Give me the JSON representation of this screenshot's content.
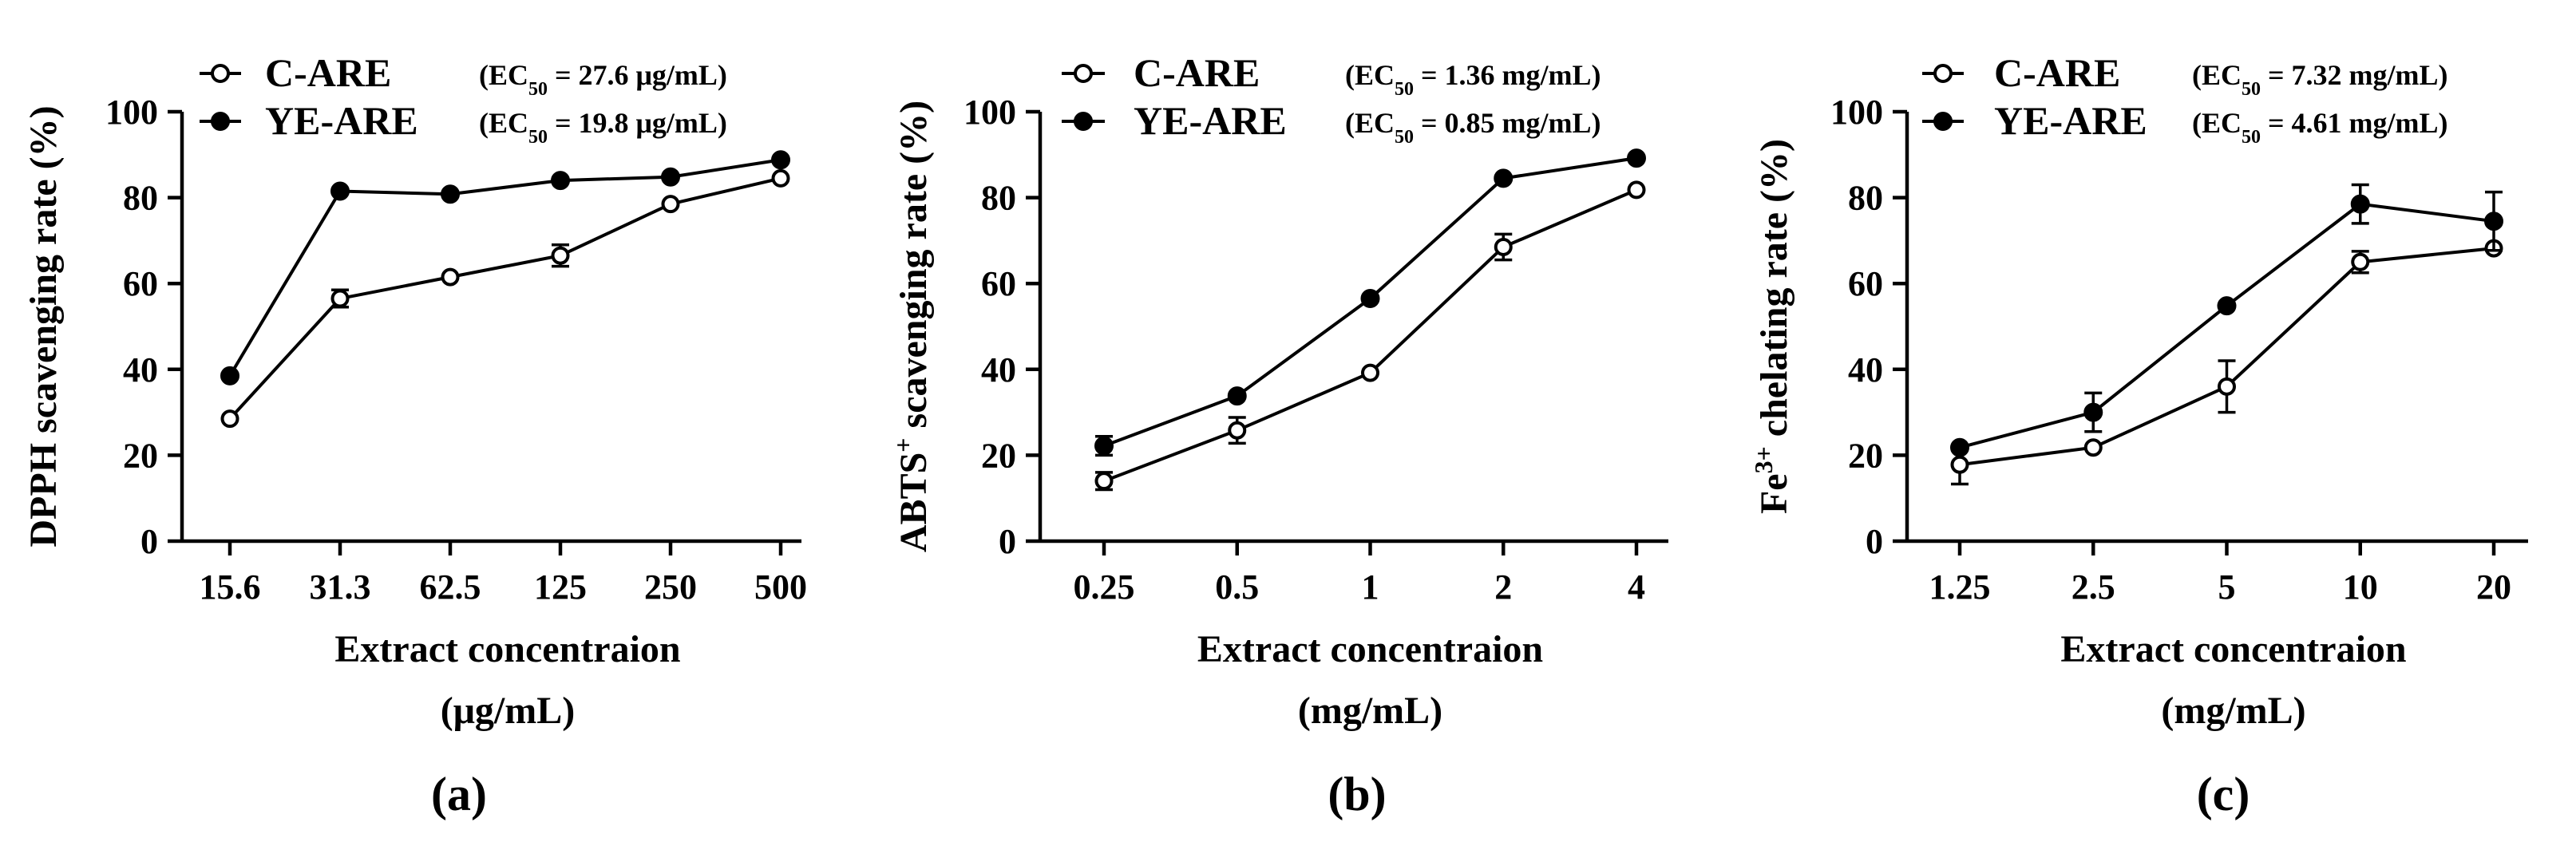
{
  "figure": {
    "panels": [
      {
        "panel_label": "(a)",
        "ylabel": "DPPH scavenging rate (%)",
        "xlabel_line1": "Extract concentraion",
        "xlabel_line2": "(μg/mL)",
        "legend": [
          {
            "name": "C-ARE",
            "ec50": "= 27.6 μg/mL)"
          },
          {
            "name": "YE-ARE",
            "ec50": "= 19.8 μg/mL)"
          }
        ]
      },
      {
        "panel_label": "(b)",
        "ylabel_base": "ABTS",
        "ylabel_sup": "+",
        "ylabel_rest": " scavenging rate (%)",
        "xlabel_line1": "Extract concentraion",
        "xlabel_line2": "(mg/mL)",
        "legend": [
          {
            "name": "C-ARE",
            "ec50": "= 1.36 mg/mL)"
          },
          {
            "name": "YE-ARE",
            "ec50": "= 0.85 mg/mL)"
          }
        ]
      },
      {
        "panel_label": "(c)",
        "ylabel_base": "Fe",
        "ylabel_sup": "3+",
        "ylabel_rest": " chelating rate (%)",
        "xlabel_line1": "Extract concentraion",
        "xlabel_line2": "(mg/mL)",
        "legend": [
          {
            "name": "C-ARE",
            "ec50": "= 7.32 mg/mL)"
          },
          {
            "name": "YE-ARE",
            "ec50": "= 4.61 mg/mL)"
          }
        ]
      }
    ],
    "ec50_prefix": "(EC",
    "ec50_sub": "50"
  },
  "chart_data": [
    {
      "type": "line",
      "title": "(a)",
      "xlabel": "Extract concentraion (μg/mL)",
      "ylabel": "DPPH scavenging rate (%)",
      "categories": [
        "15.6",
        "31.3",
        "62.5",
        "125",
        "250",
        "500"
      ],
      "ylim": [
        0,
        100
      ],
      "yticks": [
        0,
        20,
        40,
        60,
        80,
        100
      ],
      "series": [
        {
          "name": "C-ARE",
          "marker": "open-circle",
          "values": [
            28.5,
            56.5,
            61.5,
            66.5,
            78.5,
            84.5
          ],
          "errors": [
            0.5,
            2.0,
            1.0,
            2.5,
            1.0,
            1.0
          ]
        },
        {
          "name": "YE-ARE",
          "marker": "filled-circle",
          "values": [
            38.5,
            81.5,
            80.8,
            84.0,
            84.8,
            88.8
          ],
          "errors": [
            0.5,
            0.8,
            0.8,
            0.8,
            0.8,
            0.8
          ]
        }
      ]
    },
    {
      "type": "line",
      "title": "(b)",
      "xlabel": "Extract concentraion (mg/mL)",
      "ylabel": "ABTS+ scavenging rate (%)",
      "categories": [
        "0.25",
        "0.5",
        "1",
        "2",
        "4"
      ],
      "ylim": [
        0,
        100
      ],
      "yticks": [
        0,
        20,
        40,
        60,
        80,
        100
      ],
      "series": [
        {
          "name": "C-ARE",
          "marker": "open-circle",
          "values": [
            14.0,
            25.8,
            39.2,
            68.5,
            81.8
          ],
          "errors": [
            2.0,
            3.0,
            1.2,
            3.0,
            0.8
          ]
        },
        {
          "name": "YE-ARE",
          "marker": "filled-circle",
          "values": [
            22.2,
            33.8,
            56.5,
            84.5,
            89.2
          ],
          "errors": [
            2.2,
            0.8,
            0.8,
            0.8,
            0.8
          ]
        }
      ]
    },
    {
      "type": "line",
      "title": "(c)",
      "xlabel": "Extract concentraion (mg/mL)",
      "ylabel": "Fe3+ chelating rate (%)",
      "categories": [
        "1.25",
        "2.5",
        "5",
        "10",
        "20"
      ],
      "ylim": [
        0,
        100
      ],
      "yticks": [
        0,
        20,
        40,
        60,
        80,
        100
      ],
      "series": [
        {
          "name": "C-ARE",
          "marker": "open-circle",
          "values": [
            17.8,
            21.8,
            36.0,
            65.0,
            68.2
          ],
          "errors": [
            4.5,
            1.0,
            6.0,
            2.5,
            1.0
          ]
        },
        {
          "name": "YE-ARE",
          "marker": "filled-circle",
          "values": [
            21.8,
            30.0,
            54.8,
            78.5,
            74.5
          ],
          "errors": [
            0.8,
            4.5,
            0.8,
            4.5,
            6.8
          ]
        }
      ]
    }
  ]
}
